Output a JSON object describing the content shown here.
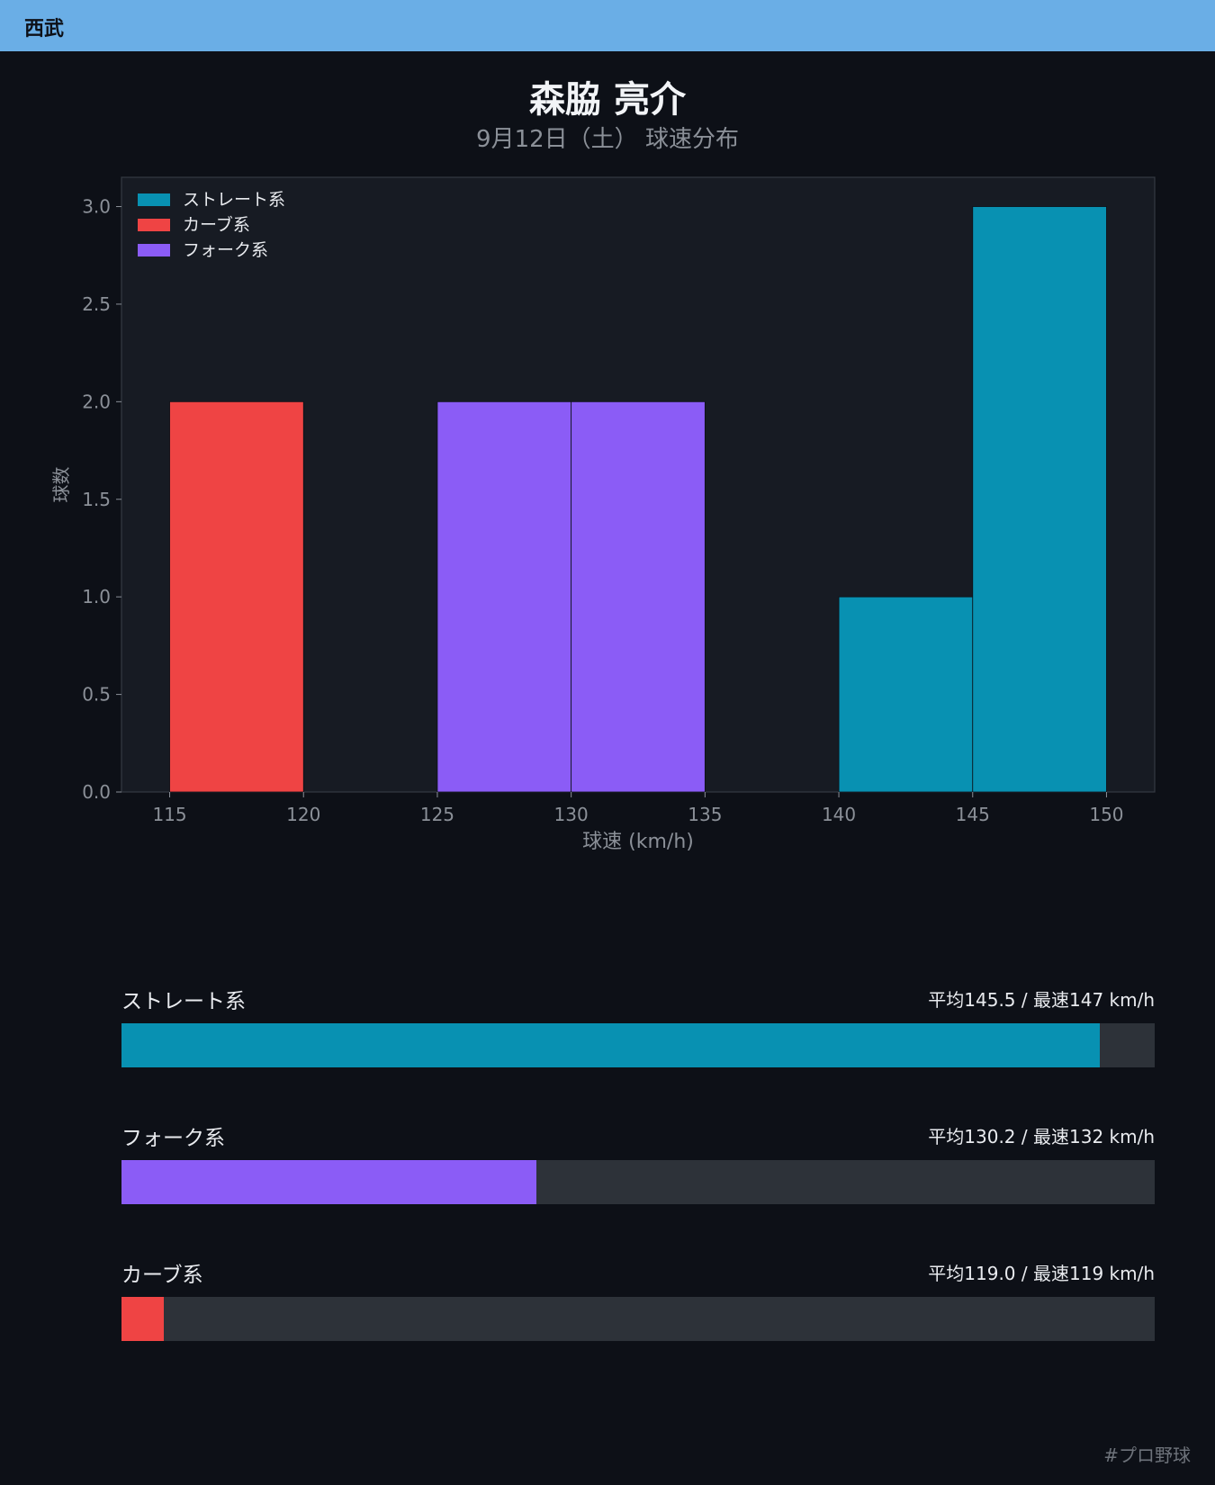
{
  "header": {
    "team": "西武"
  },
  "player": {
    "name": "森脇 亮介",
    "subtitle": "9月12日（土） 球速分布"
  },
  "chart_data": {
    "type": "bar",
    "xlabel": "球速 (km/h)",
    "ylabel": "球数",
    "xlim": [
      113.2,
      151.8
    ],
    "ylim": [
      0,
      3.15
    ],
    "x_ticks": [
      115,
      120,
      125,
      130,
      135,
      140,
      145,
      150
    ],
    "y_ticks": [
      0.0,
      0.5,
      1.0,
      1.5,
      2.0,
      2.5,
      3.0
    ],
    "bin_width": 5,
    "grid": false,
    "legend_position": "top-left",
    "series": [
      {
        "name": "ストレート系",
        "color": "#0891b2",
        "bins": [
          {
            "x0": 140,
            "x1": 145,
            "count": 1
          },
          {
            "x0": 145,
            "x1": 150,
            "count": 3
          }
        ]
      },
      {
        "name": "カーブ系",
        "color": "#ef4444",
        "bins": [
          {
            "x0": 115,
            "x1": 120,
            "count": 2
          }
        ]
      },
      {
        "name": "フォーク系",
        "color": "#8b5cf6",
        "bins": [
          {
            "x0": 125,
            "x1": 130,
            "count": 2
          },
          {
            "x0": 130,
            "x1": 135,
            "count": 2
          }
        ]
      }
    ]
  },
  "stats": [
    {
      "name": "ストレート系",
      "value": "平均145.5 / 最速147 km/h",
      "fill": 0.947,
      "color": "#0891b2"
    },
    {
      "name": "フォーク系",
      "value": "平均130.2 / 最速132 km/h",
      "fill": 0.402,
      "color": "#8b5cf6"
    },
    {
      "name": "カーブ系",
      "value": "平均119.0 / 最速119 km/h",
      "fill": 0.041,
      "color": "#ef4444"
    }
  ],
  "footer": {
    "hashtag": "#プロ野球"
  }
}
